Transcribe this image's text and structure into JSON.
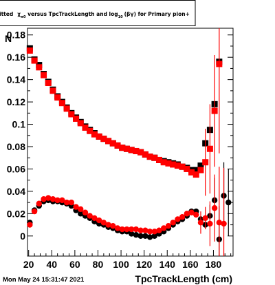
{
  "title": {
    "prefix": "itted",
    "chi": "χ",
    "chi_sub": "π0",
    "mid": " versus TpcTrackLength and log",
    "log_sub": "10",
    "suffix": "(βγ) for Primary pion+"
  },
  "timestamp": "Mon May 24 15:31:47 2021",
  "chart_data": {
    "type": "scatter",
    "xlabel": "TpcTrackLength (cm)",
    "ylabel": "N",
    "xlim": [
      19,
      197
    ],
    "ylim": [
      -0.018,
      0.186
    ],
    "x_ticks": [
      20,
      40,
      60,
      80,
      100,
      120,
      140,
      160,
      180
    ],
    "y_ticks": [
      0,
      0.02,
      0.04,
      0.06,
      0.08,
      0.1,
      0.12,
      0.14,
      0.16,
      0.18
    ],
    "y_tick_labels": [
      "0",
      "0.02",
      "0.04",
      "0.06",
      "0.08",
      "0.1",
      "0.12",
      "0.14",
      "0.16",
      "0.18"
    ],
    "series": [
      {
        "marker": "square",
        "color": "#000000",
        "x": [
          21,
          25,
          29,
          33,
          37,
          41,
          45,
          49,
          53,
          57,
          61,
          65,
          69,
          73,
          77,
          81,
          85,
          89,
          93,
          97,
          101,
          105,
          109,
          113,
          117,
          121,
          125,
          129,
          133,
          137,
          141,
          145,
          149,
          153,
          157,
          161,
          165,
          169,
          173,
          177,
          181,
          185
        ],
        "y": [
          0.168,
          0.158,
          0.153,
          0.145,
          0.138,
          0.131,
          0.125,
          0.12,
          0.115,
          0.11,
          0.106,
          0.102,
          0.098,
          0.095,
          0.092,
          0.089,
          0.087,
          0.085,
          0.083,
          0.081,
          0.079,
          0.078,
          0.077,
          0.076,
          0.075,
          0.073,
          0.071,
          0.07,
          0.068,
          0.067,
          0.066,
          0.065,
          0.064,
          0.062,
          0.061,
          0.059,
          0.059,
          0.063,
          0.083,
          0.095,
          0.118,
          0.156
        ],
        "errors": [
          0,
          0,
          0,
          0,
          0,
          0,
          0,
          0,
          0,
          0,
          0,
          0,
          0,
          0,
          0,
          0,
          0,
          0,
          0,
          0,
          0,
          0,
          0,
          0,
          0,
          0,
          0,
          0,
          0,
          0,
          0,
          0,
          0,
          0,
          0,
          0,
          0,
          0,
          0,
          0,
          0,
          0
        ]
      },
      {
        "marker": "square",
        "color": "#ff0000",
        "x": [
          21,
          25,
          29,
          33,
          37,
          41,
          45,
          49,
          53,
          57,
          61,
          65,
          69,
          73,
          77,
          81,
          85,
          89,
          93,
          97,
          101,
          105,
          109,
          113,
          117,
          121,
          125,
          129,
          133,
          137,
          141,
          145,
          149,
          153,
          157,
          161,
          165,
          169,
          173,
          177,
          181,
          185
        ],
        "y": [
          0.166,
          0.157,
          0.151,
          0.144,
          0.137,
          0.13,
          0.124,
          0.119,
          0.114,
          0.109,
          0.105,
          0.101,
          0.097,
          0.094,
          0.091,
          0.089,
          0.087,
          0.085,
          0.083,
          0.081,
          0.079,
          0.078,
          0.077,
          0.076,
          0.075,
          0.073,
          0.071,
          0.07,
          0.068,
          0.066,
          0.065,
          0.064,
          0.063,
          0.062,
          0.06,
          0.057,
          0.055,
          0.059,
          0.066,
          0.078,
          0.112,
          0.154
        ],
        "errors": [
          0,
          0,
          0,
          0,
          0,
          0,
          0,
          0,
          0,
          0,
          0,
          0,
          0,
          0,
          0,
          0,
          0,
          0,
          0,
          0,
          0,
          0,
          0,
          0,
          0,
          0,
          0,
          0,
          0,
          0,
          0,
          0,
          0,
          0,
          0,
          0,
          0,
          0,
          0.03,
          0.04,
          0.05,
          0.08
        ]
      },
      {
        "marker": "circle",
        "color": "#000000",
        "x": [
          21,
          25,
          29,
          33,
          37,
          41,
          45,
          49,
          53,
          57,
          61,
          65,
          69,
          73,
          77,
          81,
          85,
          89,
          93,
          97,
          101,
          105,
          109,
          113,
          117,
          121,
          125,
          129,
          133,
          137,
          141,
          145,
          149,
          153,
          157,
          161,
          165,
          169,
          173,
          177,
          181,
          185,
          189,
          193
        ],
        "y": [
          0.012,
          0.023,
          0.027,
          0.031,
          0.032,
          0.031,
          0.031,
          0.03,
          0.029,
          0.027,
          0.023,
          0.02,
          0.018,
          0.016,
          0.013,
          0.011,
          0.01,
          0.008,
          0.007,
          0.005,
          0.004,
          0.004,
          0.002,
          0.001,
          0.0,
          0.0,
          -0.001,
          0.0,
          0.002,
          0.004,
          0.007,
          0.01,
          0.013,
          0.015,
          0.018,
          0.022,
          0.022,
          0.015,
          0.01,
          0.018,
          0.032,
          -0.003,
          0.036,
          0.03
        ],
        "errors": [
          0,
          0,
          0,
          0,
          0,
          0,
          0,
          0,
          0,
          0,
          0,
          0,
          0,
          0,
          0,
          0,
          0,
          0,
          0,
          0,
          0,
          0,
          0,
          0,
          0,
          0,
          0,
          0,
          0,
          0,
          0,
          0,
          0,
          0,
          0,
          0,
          0,
          0,
          0,
          0.01,
          0.02,
          0.03,
          0.03,
          0.03
        ]
      },
      {
        "marker": "circle",
        "color": "#ff0000",
        "x": [
          21,
          25,
          29,
          33,
          37,
          41,
          45,
          49,
          53,
          57,
          61,
          65,
          69,
          73,
          77,
          81,
          85,
          89,
          93,
          97,
          101,
          105,
          109,
          113,
          117,
          121,
          125,
          129,
          133,
          137,
          141,
          145,
          149,
          153,
          157,
          161,
          165,
          169,
          173,
          177,
          181,
          185,
          189
        ],
        "y": [
          0.01,
          0.022,
          0.029,
          0.033,
          0.034,
          0.033,
          0.032,
          0.032,
          0.03,
          0.03,
          0.026,
          0.024,
          0.021,
          0.018,
          0.016,
          0.014,
          0.012,
          0.01,
          0.009,
          0.007,
          0.006,
          0.006,
          0.006,
          0.006,
          0.005,
          0.005,
          0.004,
          0.004,
          0.005,
          0.007,
          0.009,
          0.012,
          0.015,
          0.017,
          0.02,
          0.021,
          0.019,
          0.012,
          0.016,
          0.011,
          0.025,
          0.012,
          0.011
        ],
        "errors": [
          0,
          0,
          0,
          0,
          0,
          0,
          0,
          0,
          0,
          0,
          0,
          0,
          0,
          0,
          0,
          0,
          0,
          0,
          0,
          0,
          0,
          0,
          0,
          0,
          0,
          0,
          0,
          0,
          0,
          0,
          0,
          0,
          0,
          0,
          0,
          0,
          0,
          0.01,
          0.01,
          0.02,
          0.03,
          0.05,
          0.05
        ]
      }
    ]
  }
}
